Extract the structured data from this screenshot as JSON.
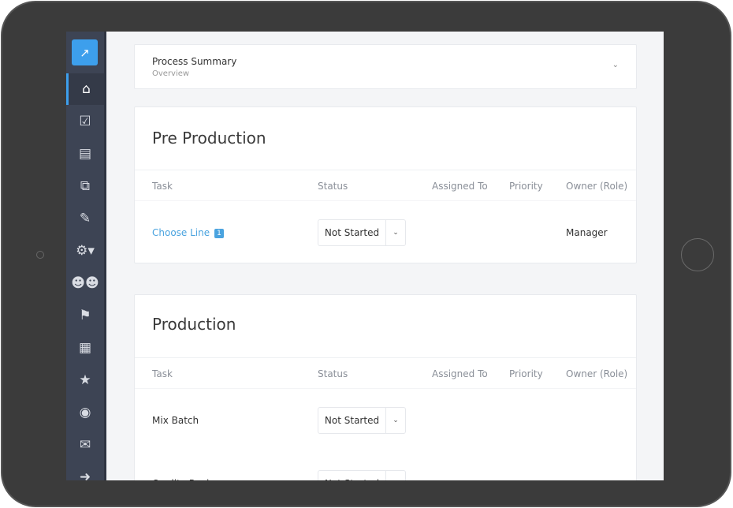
{
  "sidebar": {
    "logo_icon": "logo-arrow-icon",
    "items": [
      {
        "icon": "home-icon",
        "glyph": "⌂",
        "active": true
      },
      {
        "icon": "checkbox-icon",
        "glyph": "☑"
      },
      {
        "icon": "document-icon",
        "glyph": "▤"
      },
      {
        "icon": "copy-icon",
        "glyph": "⧉"
      },
      {
        "icon": "edit-icon",
        "glyph": "✎"
      },
      {
        "icon": "gears-icon",
        "glyph": "⚙▾"
      },
      {
        "icon": "users-icon",
        "glyph": "☻☻"
      },
      {
        "icon": "flag-icon",
        "glyph": "⚑"
      },
      {
        "icon": "table-icon",
        "glyph": "▦"
      },
      {
        "icon": "star-icon",
        "glyph": "★"
      },
      {
        "icon": "user-circle-icon",
        "glyph": "◉"
      },
      {
        "icon": "envelope-icon",
        "glyph": "✉"
      },
      {
        "icon": "sign-out-icon",
        "glyph": "➜"
      }
    ]
  },
  "summary": {
    "title": "Process Summary",
    "subtitle": "Overview"
  },
  "columns": [
    "Task",
    "Status",
    "Assigned To",
    "Priority",
    "Owner (Role)"
  ],
  "sections": [
    {
      "title": "Pre Production",
      "rows": [
        {
          "task": "Choose Line",
          "badge": "1",
          "status": "Not Started",
          "owner": "Manager",
          "link": true
        }
      ]
    },
    {
      "title": "Production",
      "rows": [
        {
          "task": "Mix Batch",
          "status": "Not Started",
          "owner": ""
        },
        {
          "task": "Quality Review",
          "status": "Not Started",
          "owner": ""
        }
      ]
    }
  ],
  "colors": {
    "accent": "#3d9fec",
    "sidebar": "#3d4454",
    "link": "#4aa3df"
  }
}
